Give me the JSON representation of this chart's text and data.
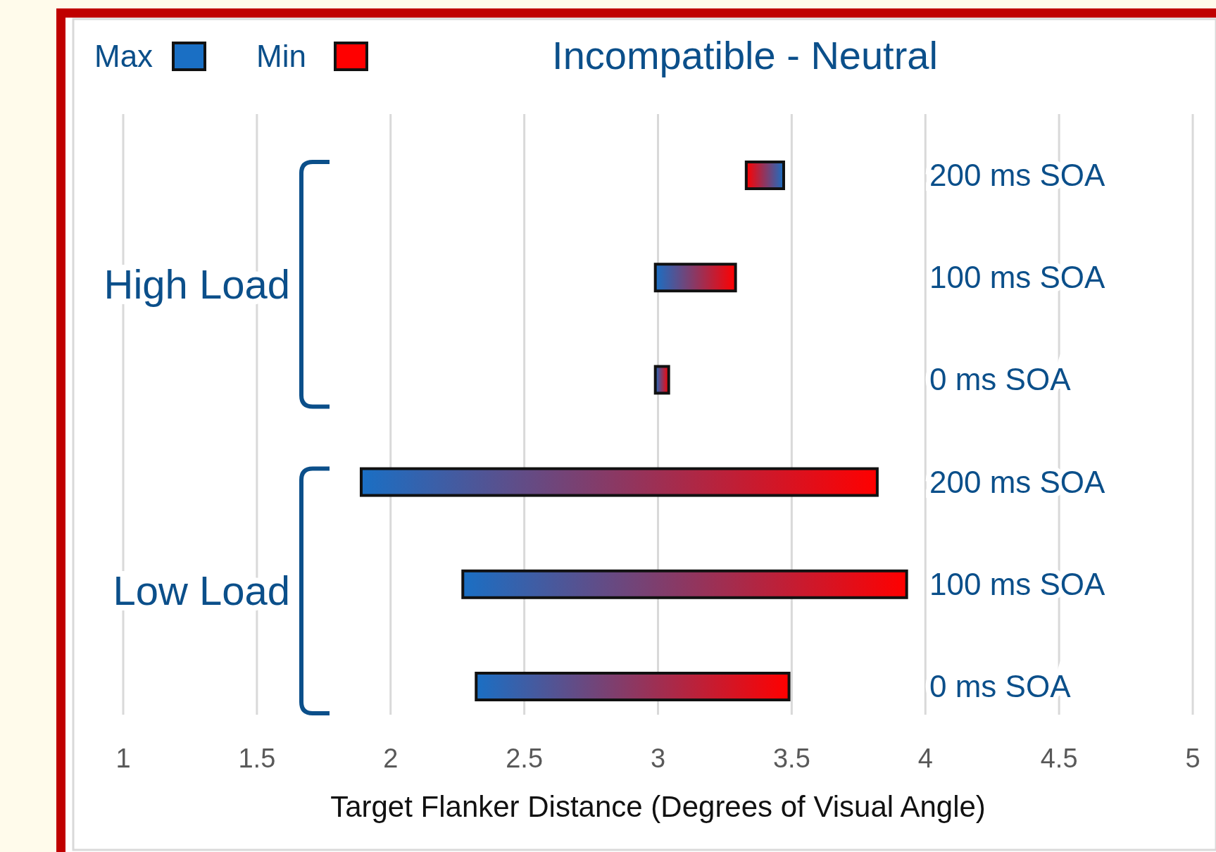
{
  "chart_data": {
    "type": "bar",
    "orientation": "horizontal",
    "title": "Incompatible - Neutral",
    "xlabel": "Target Flanker Distance (Degrees of Visual Angle)",
    "categories": [
      "200 ms SOA",
      "100 ms SOA",
      "0 ms SOA",
      "200 ms SOA",
      "100 ms SOA",
      "0 ms SOA"
    ],
    "base": [
      3.47,
      2.99,
      2.99,
      1.89,
      2.27,
      2.32
    ],
    "values": [
      -0.14,
      0.3,
      0.05,
      1.93,
      1.66,
      1.17
    ],
    "xlim": [
      1,
      5
    ],
    "xticks": [
      1,
      1.5,
      2,
      2.5,
      3,
      3.5,
      4,
      4.5,
      5
    ],
    "grid": "x",
    "annotations": [
      "High Load",
      "Low Load",
      "Max",
      "Min"
    ]
  }
}
